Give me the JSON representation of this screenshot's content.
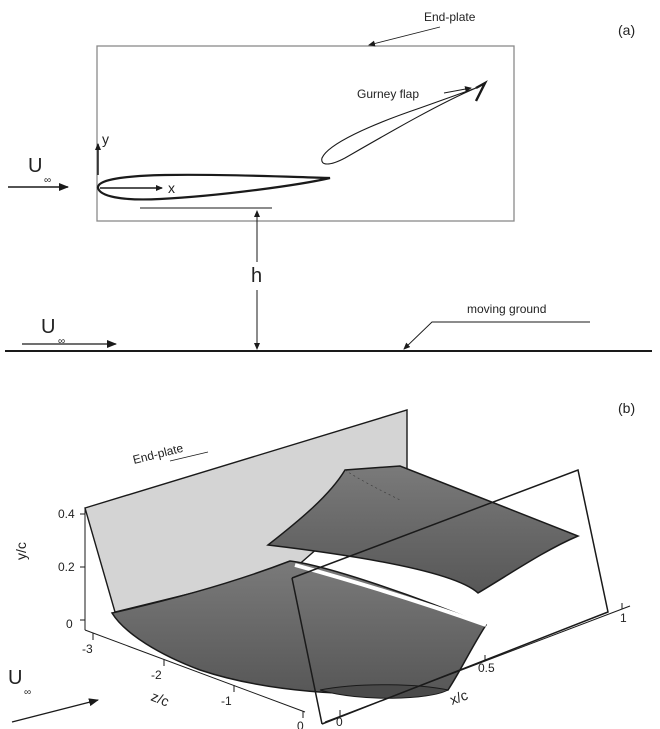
{
  "panel_a": {
    "tag": "(a)",
    "end_plate": "End-plate",
    "gurney_flap": "Gurney flap",
    "axis_y": "y",
    "axis_x": "x",
    "freestream_U": "U",
    "freestream_sub": "∞",
    "height": "h",
    "ground_U": "U",
    "ground_sub": "∞",
    "moving_ground": "moving ground"
  },
  "panel_b": {
    "tag": "(b)",
    "end_plate": "End-plate",
    "ylabel": "y/c",
    "zlabel": "z/c",
    "xlabel": "x/c",
    "y_ticks": [
      "0.4",
      "0.2",
      "0"
    ],
    "z_ticks": [
      "-3",
      "-2",
      "-1",
      "0"
    ],
    "x_ticks": [
      "0",
      "0.5",
      "1"
    ],
    "freestream_U": "U",
    "freestream_sub": "∞"
  },
  "colors": {
    "wing_fill": "#6b6b6b",
    "end_plate_fill": "#d6d6d6",
    "line": "#1a1a1a"
  }
}
